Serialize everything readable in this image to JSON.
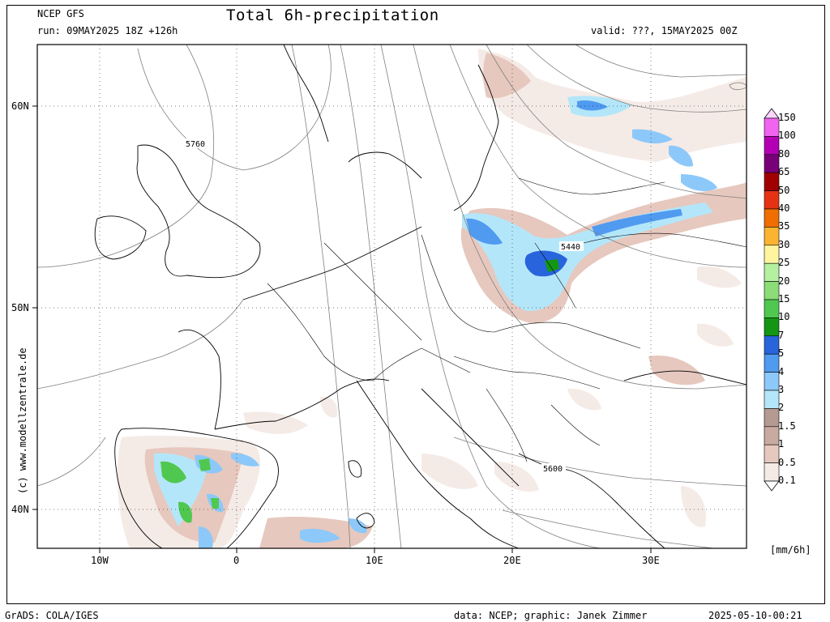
{
  "header": {
    "model": "NCEP GFS",
    "run": "run: 09MAY2025 18Z +126h",
    "title": "Total 6h-precipitation",
    "valid": "valid: ???, 15MAY2025 00Z"
  },
  "axes": {
    "lat_labels": [
      "60N",
      "50N",
      "40N"
    ],
    "lon_labels": [
      "10W",
      "0",
      "10E",
      "20E",
      "30E"
    ]
  },
  "contour_labels": [
    "5760",
    "5440",
    "5600"
  ],
  "side_label": "(c) www.modellzentrale.de",
  "legend": {
    "unit": "[mm/6h]",
    "levels": [
      "150",
      "100",
      "80",
      "65",
      "50",
      "40",
      "35",
      "30",
      "25",
      "20",
      "15",
      "10",
      "7",
      "5",
      "4",
      "3",
      "2",
      "1.5",
      "1",
      "0.5",
      "0.1"
    ],
    "colors": [
      "#fcd6fc",
      "#f064f0",
      "#b400b4",
      "#780078",
      "#a00000",
      "#e63214",
      "#f06e00",
      "#fab432",
      "#fff5a0",
      "#b4f0a0",
      "#8cdc78",
      "#50c850",
      "#149614",
      "#2864dc",
      "#509af0",
      "#8cc8fa",
      "#b4e6fa",
      "#b49a91",
      "#c8aaa0",
      "#e6c8be",
      "#f5ebe6"
    ]
  },
  "footer": {
    "left": "GrADS: COLA/IGES",
    "middle": "data: NCEP; graphic: Janek Zimmer",
    "right": "2025-05-10-00:21"
  }
}
